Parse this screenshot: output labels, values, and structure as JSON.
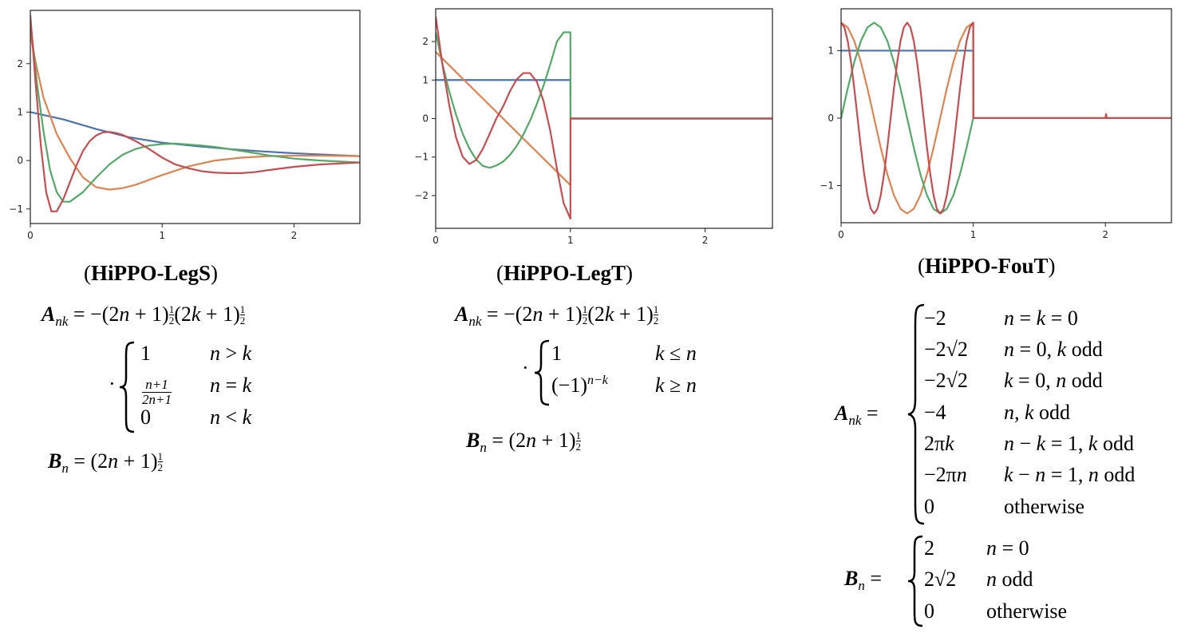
{
  "captions": {
    "legs": "HiPPO-LegS",
    "legt": "HiPPO-LegT",
    "fout": "HiPPO-FouT"
  },
  "colors": {
    "blue": "#4c72b0",
    "orange": "#dd8452",
    "green": "#55a868",
    "red": "#c44e52"
  },
  "chart_data": [
    {
      "type": "line",
      "name": "legs",
      "xlim": [
        0,
        2.5
      ],
      "ylim": [
        -1.3,
        3.1
      ],
      "xticks": [
        0,
        1,
        2
      ],
      "yticks": [
        -1,
        0,
        1,
        2
      ],
      "series": [
        {
          "color": "blue",
          "x": [
            0,
            0.25,
            0.5,
            0.75,
            1,
            1.25,
            1.5,
            1.75,
            2,
            2.25,
            2.5
          ],
          "y": [
            1,
            0.85,
            0.65,
            0.48,
            0.37,
            0.3,
            0.24,
            0.19,
            0.15,
            0.12,
            0.09
          ]
        },
        {
          "color": "orange",
          "x": [
            0,
            0.05,
            0.1,
            0.2,
            0.3,
            0.4,
            0.5,
            0.6,
            0.7,
            0.8,
            1,
            1.2,
            1.4,
            1.6,
            1.8,
            2,
            2.2,
            2.5
          ],
          "y": [
            2.6,
            1.9,
            1.3,
            0.55,
            0.05,
            -0.35,
            -0.55,
            -0.6,
            -0.57,
            -0.5,
            -0.3,
            -0.12,
            0,
            0.06,
            0.09,
            0.1,
            0.1,
            0.09
          ]
        },
        {
          "color": "green",
          "x": [
            0,
            0.05,
            0.1,
            0.15,
            0.2,
            0.25,
            0.3,
            0.4,
            0.5,
            0.6,
            0.7,
            0.8,
            0.9,
            1,
            1.1,
            1.2,
            1.3,
            1.4,
            1.6,
            1.8,
            2,
            2.2,
            2.5
          ],
          "y": [
            2.9,
            1.6,
            0.6,
            -0.2,
            -0.65,
            -0.85,
            -0.85,
            -0.65,
            -0.35,
            -0.08,
            0.12,
            0.24,
            0.31,
            0.34,
            0.35,
            0.33,
            0.31,
            0.28,
            0.2,
            0.11,
            0.04,
            0,
            -0.04
          ]
        },
        {
          "color": "red",
          "x": [
            0,
            0.04,
            0.08,
            0.12,
            0.16,
            0.2,
            0.25,
            0.3,
            0.35,
            0.4,
            0.45,
            0.5,
            0.55,
            0.6,
            0.65,
            0.7,
            0.8,
            0.9,
            1,
            1.1,
            1.2,
            1.3,
            1.4,
            1.5,
            1.6,
            1.7,
            1.8,
            2,
            2.2,
            2.5
          ],
          "y": [
            3,
            1.6,
            0.3,
            -0.65,
            -1.05,
            -1.05,
            -0.8,
            -0.45,
            -0.1,
            0.2,
            0.4,
            0.52,
            0.58,
            0.59,
            0.57,
            0.53,
            0.4,
            0.24,
            0.06,
            -0.08,
            -0.16,
            -0.22,
            -0.25,
            -0.26,
            -0.26,
            -0.24,
            -0.2,
            -0.13,
            -0.08,
            -0.04
          ]
        }
      ]
    },
    {
      "type": "line",
      "name": "legt",
      "xlim": [
        0,
        2.5
      ],
      "ylim": [
        -2.85,
        2.85
      ],
      "xticks": [
        0,
        1,
        2
      ],
      "yticks": [
        -2,
        -1,
        0,
        1,
        2
      ],
      "series": [
        {
          "color": "blue",
          "x": [
            0,
            1,
            1,
            1.001,
            2.5
          ],
          "y": [
            1,
            1,
            1,
            0,
            0
          ]
        },
        {
          "color": "orange",
          "x": [
            0,
            1,
            1.001,
            2.5
          ],
          "y": [
            1.73,
            -1.73,
            0,
            0
          ]
        },
        {
          "color": "green",
          "x": [
            0,
            0.05,
            0.1,
            0.15,
            0.2,
            0.25,
            0.3,
            0.35,
            0.4,
            0.45,
            0.5,
            0.55,
            0.6,
            0.65,
            0.7,
            0.75,
            0.8,
            0.85,
            0.9,
            0.95,
            1,
            1.001,
            2.5
          ],
          "y": [
            2.24,
            1.42,
            0.71,
            0.11,
            -0.39,
            -0.78,
            -1.06,
            -1.23,
            -1.28,
            -1.22,
            -1.12,
            -0.95,
            -0.72,
            -0.42,
            -0.06,
            0.37,
            0.85,
            1.4,
            2.0,
            2.24,
            2.24,
            0,
            0
          ]
        },
        {
          "color": "red",
          "x": [
            0,
            0.05,
            0.1,
            0.15,
            0.2,
            0.25,
            0.3,
            0.35,
            0.4,
            0.45,
            0.5,
            0.55,
            0.6,
            0.65,
            0.7,
            0.75,
            0.8,
            0.85,
            0.9,
            0.95,
            1,
            1.001,
            2.5
          ],
          "y": [
            2.65,
            1.4,
            0.36,
            -0.48,
            -0.99,
            -1.18,
            -1.08,
            -0.79,
            -0.4,
            0,
            0.31,
            0.7,
            1.01,
            1.18,
            1.18,
            0.96,
            0.46,
            -0.31,
            -1.3,
            -2.2,
            -2.6,
            0,
            0
          ]
        }
      ]
    },
    {
      "type": "line",
      "name": "fout",
      "xlim": [
        0,
        2.5
      ],
      "ylim": [
        -1.55,
        1.62
      ],
      "xticks": [
        0,
        1,
        2
      ],
      "yticks": [
        -1,
        0,
        1
      ],
      "series": [
        {
          "color": "blue",
          "x": [
            0,
            1,
            1.001,
            2.5
          ],
          "y": [
            1,
            1,
            0,
            0
          ]
        },
        {
          "color": "orange",
          "x": [
            0,
            0.05,
            0.1,
            0.15,
            0.2,
            0.25,
            0.3,
            0.35,
            0.4,
            0.45,
            0.5,
            0.55,
            0.6,
            0.65,
            0.7,
            0.75,
            0.8,
            0.85,
            0.9,
            0.95,
            1,
            1.001,
            2.5
          ],
          "y": [
            1.414,
            1.345,
            1.144,
            0.831,
            0.437,
            0,
            -0.437,
            -0.831,
            -1.144,
            -1.345,
            -1.414,
            -1.345,
            -1.144,
            -0.831,
            -0.437,
            0,
            0.437,
            0.831,
            1.144,
            1.345,
            1.414,
            0,
            0
          ]
        },
        {
          "color": "green",
          "x": [
            0,
            0.05,
            0.1,
            0.15,
            0.2,
            0.25,
            0.3,
            0.35,
            0.4,
            0.45,
            0.5,
            0.55,
            0.6,
            0.65,
            0.7,
            0.75,
            0.8,
            0.85,
            0.9,
            0.95,
            1,
            1.001,
            2.5
          ],
          "y": [
            0,
            0.437,
            0.831,
            1.144,
            1.345,
            1.414,
            1.345,
            1.144,
            0.831,
            0.437,
            0,
            -0.437,
            -0.831,
            -1.144,
            -1.345,
            -1.414,
            -1.345,
            -1.144,
            -0.831,
            -0.437,
            0,
            0,
            0
          ]
        },
        {
          "color": "red",
          "x": [
            0,
            0.025,
            0.05,
            0.075,
            0.1,
            0.125,
            0.15,
            0.175,
            0.2,
            0.225,
            0.25,
            0.275,
            0.3,
            0.325,
            0.35,
            0.375,
            0.4,
            0.425,
            0.45,
            0.475,
            0.5,
            0.525,
            0.55,
            0.575,
            0.6,
            0.625,
            0.65,
            0.675,
            0.7,
            0.725,
            0.75,
            0.775,
            0.8,
            0.825,
            0.85,
            0.875,
            0.9,
            0.925,
            0.95,
            0.975,
            1,
            1.001,
            2,
            2.005,
            2.01,
            2.5
          ],
          "y": [
            1.414,
            1.345,
            1.144,
            0.831,
            0.437,
            0,
            -0.437,
            -0.831,
            -1.144,
            -1.345,
            -1.414,
            -1.345,
            -1.144,
            -0.831,
            -0.437,
            0,
            0.437,
            0.831,
            1.144,
            1.345,
            1.414,
            1.345,
            1.144,
            0.831,
            0.437,
            0,
            -0.437,
            -0.831,
            -1.144,
            -1.345,
            -1.414,
            -1.345,
            -1.144,
            -0.831,
            -0.437,
            0,
            0.437,
            0.831,
            1.144,
            1.345,
            1.414,
            0,
            0,
            0.06,
            0,
            0
          ]
        }
      ]
    }
  ]
}
